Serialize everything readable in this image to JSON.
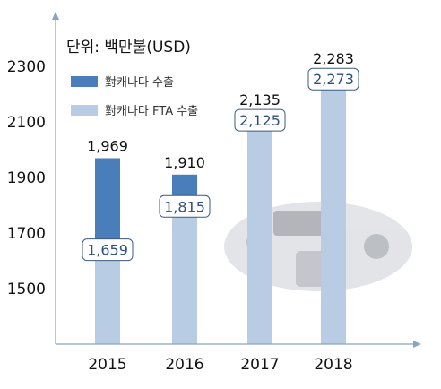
{
  "chart_data": {
    "type": "bar",
    "unit_label": "단위: 백만불(USD)",
    "categories": [
      "2015",
      "2016",
      "2017",
      "2018"
    ],
    "series": [
      {
        "name": "對캐나다 수출",
        "values": [
          1969,
          1910,
          2135,
          2283
        ],
        "value_labels": [
          "1,969",
          "1,910",
          "2,135",
          "2,283"
        ],
        "color": "#4a7ebb"
      },
      {
        "name": "對캐나다 FTA 수출",
        "values": [
          1659,
          1815,
          2125,
          2273
        ],
        "value_labels": [
          "1,659",
          "1,815",
          "2,125",
          "2,273"
        ],
        "color": "#b8cce4"
      }
    ],
    "yticks": [
      "1500",
      "1700",
      "1900",
      "2100",
      "2300"
    ],
    "ytick_values": [
      1500,
      1700,
      1900,
      2100,
      2300
    ],
    "ylim": [
      1300,
      2480
    ],
    "grid": false,
    "legend_position": "top-left"
  }
}
